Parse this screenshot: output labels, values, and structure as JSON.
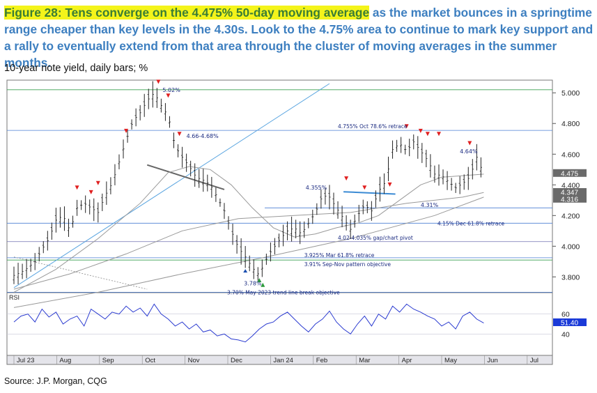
{
  "figure": {
    "title_highlight": "Figure 28: Tens converge on the 4.475% 50-day moving average",
    "title_rest": " as the market bounces in a springtime range cheaper than key levels in the 4.30s. Look to the 4.75% area to continue to mark key support and a rally to eventually extend from that area through the cluster of moving averages in the summer months.",
    "subtitle": "10-year note yield, daily bars; %",
    "source": "Source: J.P. Morgan, CQG"
  },
  "chart_data": [
    {
      "type": "line",
      "chart": "price",
      "yaxis_ticks": [
        "5.000",
        "4.800",
        "4.600",
        "4.400",
        "4.200",
        "4.000",
        "3.800"
      ],
      "ylim": [
        3.72,
        5.06
      ],
      "x_months": [
        "Jul 23",
        "Aug",
        "Sep",
        "Oct",
        "Nov",
        "Dec",
        "Jan 24",
        "Feb",
        "Mar",
        "Apr",
        "May",
        "Jun",
        "Jul"
      ],
      "value_boxes": [
        {
          "label": "4.475",
          "value": 4.475
        },
        {
          "label": "4.347",
          "value": 4.347
        },
        {
          "label": "4.316",
          "value": 4.316
        }
      ],
      "levels": [
        {
          "label": "4.755% Oct 78.6% retrace",
          "value": 4.755
        },
        {
          "label": "4.15% Dec 61.8% retrace",
          "value": 4.15
        },
        {
          "label": "4.02-4.035% gap/chart pivot",
          "value": 4.03
        },
        {
          "label": "3.925% Mar 61.8% retrace",
          "value": 3.925
        },
        {
          "label": "3.91% Sep-Nov pattern objective",
          "value": 3.91
        },
        {
          "label": "3.70% May 2023 trend line break objective",
          "value": 3.7
        }
      ],
      "annotations": [
        "5.02%",
        "4.66-4.68%",
        "4.355%",
        "4.31%",
        "4.64%",
        "3.78%"
      ],
      "series": [
        {
          "name": "daily close",
          "x_day": [
            0,
            5,
            10,
            15,
            20,
            25,
            30,
            35,
            40,
            45,
            50,
            55,
            60,
            65,
            70,
            75,
            80,
            85,
            90,
            95,
            100,
            103,
            106,
            110,
            115,
            120,
            125,
            130,
            135,
            140,
            145,
            150,
            155,
            160,
            165,
            170,
            175,
            178,
            182,
            186,
            190,
            195,
            200,
            205,
            210,
            215,
            220,
            225,
            230,
            235,
            240,
            245,
            250,
            255,
            260,
            265,
            270,
            275,
            280,
            285,
            290,
            295,
            300,
            305,
            310,
            315,
            320,
            325,
            330,
            335
          ],
          "values": [
            3.81,
            3.83,
            3.86,
            3.9,
            3.98,
            4.05,
            4.17,
            4.2,
            4.1,
            4.25,
            4.28,
            4.25,
            4.22,
            4.33,
            4.41,
            4.55,
            4.69,
            4.82,
            4.87,
            4.95,
            5.0,
            4.95,
            4.9,
            4.85,
            4.65,
            4.58,
            4.52,
            4.45,
            4.43,
            4.4,
            4.32,
            4.23,
            4.1,
            3.99,
            3.93,
            3.86,
            3.81,
            3.88,
            3.95,
            4.0,
            4.05,
            4.1,
            4.12,
            4.08,
            4.15,
            4.22,
            4.33,
            4.32,
            4.25,
            4.18,
            4.11,
            4.2,
            4.27,
            4.23,
            4.36,
            4.42,
            4.63,
            4.67,
            4.62,
            4.68,
            4.62,
            4.56,
            4.47,
            4.46,
            4.42,
            4.38,
            4.41,
            4.45,
            4.58,
            4.47
          ]
        },
        {
          "name": "moving average 1",
          "x_day": [
            0,
            30,
            60,
            90,
            110,
            125,
            140,
            155,
            170,
            185,
            200,
            215,
            230,
            245,
            260,
            275,
            290,
            305,
            320,
            335
          ],
          "values": [
            3.7,
            3.85,
            4.05,
            4.28,
            4.48,
            4.52,
            4.5,
            4.4,
            4.25,
            4.12,
            4.06,
            4.08,
            4.12,
            4.15,
            4.2,
            4.3,
            4.4,
            4.45,
            4.46,
            4.47
          ]
        },
        {
          "name": "moving average 2",
          "x_day": [
            0,
            40,
            80,
            120,
            160,
            200,
            240,
            280,
            320,
            335
          ],
          "values": [
            3.72,
            3.82,
            3.95,
            4.1,
            4.18,
            4.2,
            4.22,
            4.28,
            4.32,
            4.35
          ]
        },
        {
          "name": "moving average 3",
          "x_day": [
            0,
            60,
            120,
            180,
            240,
            300,
            335
          ],
          "values": [
            3.6,
            3.7,
            3.82,
            3.93,
            4.05,
            4.2,
            4.32
          ]
        }
      ]
    },
    {
      "type": "line",
      "chart": "rsi",
      "title": "RSI",
      "yaxis_ticks": [
        "60",
        "40"
      ],
      "ylim": [
        22,
        78
      ],
      "value_box": "51.40",
      "series": [
        {
          "name": "RSI",
          "x_day": [
            0,
            5,
            10,
            15,
            20,
            25,
            30,
            35,
            40,
            45,
            50,
            55,
            60,
            65,
            70,
            75,
            80,
            85,
            90,
            95,
            100,
            105,
            110,
            115,
            120,
            125,
            130,
            135,
            140,
            145,
            150,
            155,
            160,
            165,
            170,
            175,
            180,
            185,
            190,
            195,
            200,
            205,
            210,
            215,
            220,
            225,
            230,
            235,
            240,
            245,
            250,
            255,
            260,
            265,
            270,
            275,
            280,
            285,
            290,
            295,
            300,
            305,
            310,
            315,
            320,
            325,
            330,
            335
          ],
          "values": [
            52,
            58,
            60,
            52,
            65,
            57,
            62,
            50,
            55,
            58,
            48,
            65,
            60,
            55,
            62,
            60,
            68,
            62,
            66,
            58,
            70,
            60,
            55,
            48,
            52,
            45,
            50,
            42,
            44,
            38,
            40,
            35,
            34,
            32,
            38,
            45,
            50,
            52,
            58,
            62,
            55,
            48,
            42,
            50,
            55,
            63,
            52,
            45,
            40,
            50,
            58,
            48,
            60,
            55,
            68,
            62,
            70,
            65,
            62,
            58,
            55,
            48,
            52,
            45,
            58,
            62,
            55,
            51
          ]
        }
      ]
    }
  ]
}
